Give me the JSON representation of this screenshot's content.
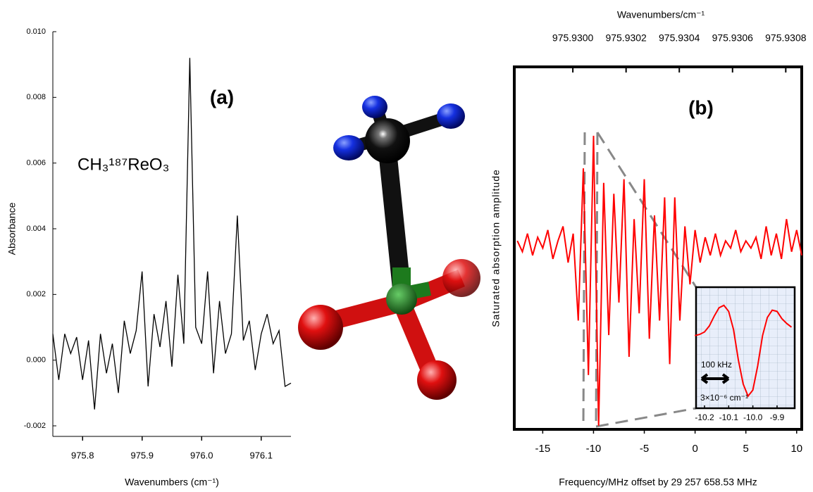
{
  "chart_data": [
    {
      "type": "line",
      "color": "#000000",
      "xlabel": "Wavenumbers (cm⁻¹)",
      "ylabel": "Absorbance",
      "annotations": [
        "(a)",
        "CH₃¹⁸⁷ReO₃"
      ],
      "xlim": [
        975.75,
        976.15
      ],
      "ylim": [
        -0.002,
        0.01
      ],
      "xticks": [
        975.8,
        975.9,
        {
          "value": 976,
          "label": "976.0"
        },
        976.1
      ],
      "yticks": [
        -0.002,
        {
          "value": 0,
          "label": "0.000"
        },
        0.002,
        0.004,
        0.006,
        0.008,
        {
          "value": 0.01,
          "label": "0.010"
        }
      ],
      "x": [
        975.75,
        975.76,
        975.77,
        975.78,
        975.79,
        975.8,
        975.81,
        975.82,
        975.83,
        975.84,
        975.85,
        975.86,
        975.87,
        975.88,
        975.89,
        975.9,
        975.91,
        975.92,
        975.93,
        975.94,
        975.95,
        975.96,
        975.97,
        975.98,
        975.99,
        976.0,
        976.01,
        976.02,
        976.03,
        976.04,
        976.05,
        976.06,
        976.07,
        976.08,
        976.09,
        976.1,
        976.11,
        976.12,
        976.13,
        976.14,
        976.15
      ],
      "values": [
        0.0008,
        -0.0006,
        0.0008,
        0.0002,
        0.0007,
        -0.0006,
        0.0006,
        -0.0015,
        0.0008,
        -0.0004,
        0.0005,
        -0.001,
        0.0012,
        0.0002,
        0.0009,
        0.0027,
        -0.0008,
        0.0014,
        0.0004,
        0.0018,
        -0.0002,
        0.0026,
        0.0005,
        0.0092,
        0.001,
        0.0005,
        0.0027,
        -0.0004,
        0.0018,
        0.0002,
        0.0008,
        0.0044,
        0.0006,
        0.0012,
        -0.0003,
        0.0008,
        0.0014,
        0.0005,
        0.0009,
        -0.0008,
        -0.0007
      ]
    },
    {
      "type": "line",
      "color": "#ff0000",
      "xlabel": "Frequency/MHz offset by 29 257 658.53 MHz",
      "ylabel": "Saturated absorption amplitude",
      "x2label": "Wavenumbers/cm⁻¹",
      "annotations": [
        "(b)"
      ],
      "xlim": [
        -17.8,
        10.5
      ],
      "ylim": [
        0,
        10
      ],
      "xticks": [
        -15,
        -10,
        -5,
        0,
        5,
        10
      ],
      "x2lim": [
        975.92978,
        975.93086
      ],
      "x2ticks": [
        {
          "value": 975.93,
          "label": "975.9300"
        },
        975.9302,
        975.9304,
        975.9306,
        975.9308
      ],
      "x": [
        -17.5,
        -17,
        -16.5,
        -16,
        -15.5,
        -15,
        -14.5,
        -14,
        -13.5,
        -13,
        -12.5,
        -12,
        -11.5,
        -11,
        -10.5,
        -10,
        -9.5,
        -9,
        -8.5,
        -8,
        -7.5,
        -7,
        -6.5,
        -6,
        -5.5,
        -5,
        -4.5,
        -4,
        -3.5,
        -3,
        -2.5,
        -2,
        -1.5,
        -1,
        -0.5,
        0,
        0.5,
        1,
        1.5,
        2,
        2.5,
        3,
        3.5,
        4,
        4.5,
        5,
        5.5,
        6,
        6.5,
        7,
        7.5,
        8,
        8.5,
        9,
        9.5,
        10,
        10.5
      ],
      "values": [
        5.2,
        4.9,
        5.4,
        4.8,
        5.3,
        5,
        5.5,
        4.7,
        5.2,
        5.6,
        4.6,
        5.4,
        3,
        7.2,
        1.5,
        8.1,
        0.1,
        6.8,
        2.6,
        6.5,
        3.5,
        6.9,
        2,
        5.8,
        3.2,
        6.9,
        2.5,
        5.9,
        3,
        6.4,
        1.8,
        6.4,
        3,
        5.6,
        4,
        5.5,
        4.6,
        5.3,
        4.8,
        5.4,
        4.8,
        5.2,
        5,
        5.5,
        4.9,
        5.2,
        5,
        5.3,
        4.7,
        5.6,
        4.8,
        5.4,
        4.7,
        5.8,
        4.9,
        5.5,
        4.8
      ]
    },
    {
      "type": "line",
      "color": "#ff0000",
      "annotations": [
        "100 kHz",
        "3×10⁻⁶ cm⁻¹"
      ],
      "xlim": [
        -10.235,
        -9.827
      ],
      "ylim": [
        0,
        10
      ],
      "xticks": [
        -10.2,
        -10.1,
        {
          "value": -10,
          "label": "-10.0"
        },
        -9.9
      ],
      "x": [
        -10.24,
        -10.22,
        -10.2,
        -10.18,
        -10.16,
        -10.14,
        -10.12,
        -10.1,
        -10.08,
        -10.06,
        -10.04,
        -10.02,
        -10,
        -9.98,
        -9.96,
        -9.94,
        -9.92,
        -9.9,
        -9.88,
        -9.86,
        -9.84
      ],
      "values": [
        6,
        6.1,
        6.3,
        6.8,
        7.6,
        8.3,
        8.5,
        8,
        6.5,
        4,
        2,
        1,
        1.5,
        3.5,
        6,
        7.5,
        8.1,
        8,
        7.4,
        7,
        6.7
      ]
    }
  ]
}
